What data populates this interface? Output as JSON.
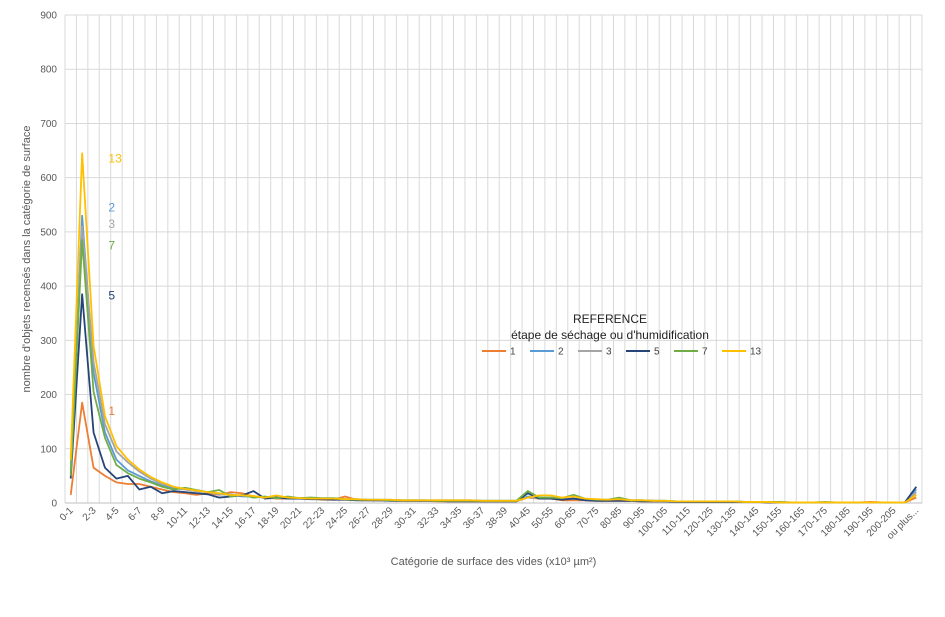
{
  "chart_data": {
    "type": "line",
    "xlabel": "Catégorie de surface des vides (x10³ µm²)",
    "ylabel": "nombre d'objets recensés dans la catégorie de surface",
    "ylim": [
      0,
      900
    ],
    "yticks": [
      0,
      100,
      200,
      300,
      400,
      500,
      600,
      700,
      800,
      900
    ],
    "grid": true,
    "legend": {
      "title_line1": "REFERENCE",
      "title_line2": "étape de séchage ou d'humidification",
      "placement": "center-right"
    },
    "categories": [
      "0-1",
      "1-2",
      "2-3",
      "3-4",
      "4-5",
      "5-6",
      "6-7",
      "7-8",
      "8-9",
      "9-10",
      "10-11",
      "11-12",
      "12-13",
      "13-14",
      "14-15",
      "15-16",
      "16-17",
      "17-18",
      "18-19",
      "19-20",
      "20-21",
      "21-22",
      "22-23",
      "23-24",
      "24-25",
      "25-26",
      "26-27",
      "27-28",
      "28-29",
      "29-30",
      "30-31",
      "31-32",
      "32-33",
      "33-34",
      "34-35",
      "35-36",
      "36-37",
      "37-38",
      "38-39",
      "39-40",
      "40-45",
      "45-50",
      "50-55",
      "55-60",
      "60-65",
      "65-70",
      "70-75",
      "75-80",
      "80-85",
      "85-90",
      "90-95",
      "95-100",
      "100-105",
      "105-110",
      "110-115",
      "115-120",
      "120-125",
      "125-130",
      "130-135",
      "135-140",
      "140-145",
      "145-150",
      "150-155",
      "155-160",
      "160-165",
      "165-170",
      "170-175",
      "175-180",
      "180-185",
      "185-190",
      "190-195",
      "195-200",
      "200-205",
      "205-210",
      "ou plus..."
    ],
    "xtick_labels": [
      "0-1",
      "2-3",
      "4-5",
      "6-7",
      "8-9",
      "10-11",
      "12-13",
      "14-15",
      "16-17",
      "18-19",
      "20-21",
      "22-23",
      "24-25",
      "26-27",
      "28-29",
      "30-31",
      "32-33",
      "34-35",
      "36-37",
      "38-39",
      "40-45",
      "50-55",
      "60-65",
      "70-75",
      "80-85",
      "90-95",
      "100-105",
      "110-115",
      "120-125",
      "130-135",
      "140-145",
      "150-155",
      "160-165",
      "170-175",
      "180-185",
      "190-195",
      "200-205",
      "ou plus..."
    ],
    "series": [
      {
        "name": "1",
        "color": "#ED7D31",
        "annotation": {
          "text": "1",
          "x_index": 4,
          "y": 170
        },
        "values": [
          15,
          185,
          65,
          50,
          38,
          35,
          35,
          30,
          25,
          20,
          18,
          15,
          18,
          15,
          20,
          18,
          12,
          10,
          8,
          8,
          8,
          8,
          6,
          6,
          12,
          6,
          5,
          5,
          5,
          4,
          4,
          4,
          3,
          3,
          3,
          3,
          3,
          3,
          3,
          3,
          10,
          8,
          8,
          5,
          5,
          5,
          4,
          4,
          4,
          4,
          3,
          3,
          3,
          3,
          3,
          2,
          2,
          2,
          2,
          2,
          2,
          1,
          1,
          1,
          1,
          1,
          1,
          1,
          1,
          1,
          2,
          1,
          1,
          1,
          10
        ]
      },
      {
        "name": "2",
        "color": "#5B9BD5",
        "annotation": {
          "text": "2",
          "x_index": 4,
          "y": 545
        },
        "values": [
          60,
          530,
          240,
          130,
          80,
          60,
          50,
          40,
          32,
          28,
          25,
          22,
          20,
          16,
          16,
          12,
          12,
          10,
          9,
          9,
          9,
          8,
          8,
          8,
          7,
          7,
          6,
          6,
          6,
          5,
          5,
          5,
          5,
          5,
          5,
          5,
          4,
          4,
          4,
          4,
          12,
          10,
          8,
          8,
          8,
          7,
          6,
          6,
          6,
          5,
          5,
          4,
          4,
          3,
          3,
          3,
          3,
          3,
          3,
          2,
          2,
          2,
          2,
          1,
          1,
          1,
          1,
          1,
          1,
          1,
          1,
          1,
          1,
          1,
          25
        ]
      },
      {
        "name": "3",
        "color": "#A5A5A5",
        "annotation": {
          "text": "3",
          "x_index": 4,
          "y": 515
        },
        "values": [
          55,
          510,
          260,
          145,
          95,
          75,
          58,
          45,
          35,
          30,
          25,
          22,
          20,
          16,
          15,
          14,
          12,
          10,
          10,
          9,
          8,
          8,
          7,
          7,
          6,
          6,
          5,
          5,
          5,
          5,
          4,
          4,
          4,
          4,
          4,
          4,
          3,
          3,
          3,
          3,
          10,
          9,
          8,
          7,
          7,
          6,
          5,
          5,
          5,
          4,
          4,
          4,
          3,
          3,
          3,
          3,
          3,
          2,
          2,
          2,
          2,
          2,
          1,
          1,
          1,
          1,
          1,
          1,
          1,
          1,
          1,
          1,
          1,
          1,
          20
        ]
      },
      {
        "name": "5",
        "color": "#264478",
        "annotation": {
          "text": "5",
          "x_index": 4,
          "y": 383
        },
        "values": [
          45,
          385,
          130,
          65,
          45,
          50,
          25,
          30,
          18,
          22,
          20,
          18,
          16,
          10,
          12,
          14,
          22,
          8,
          10,
          8,
          8,
          7,
          7,
          6,
          6,
          5,
          5,
          5,
          4,
          4,
          4,
          4,
          4,
          3,
          3,
          3,
          3,
          3,
          3,
          3,
          18,
          8,
          8,
          6,
          8,
          5,
          4,
          4,
          4,
          4,
          3,
          3,
          3,
          2,
          2,
          2,
          2,
          2,
          2,
          2,
          2,
          1,
          1,
          1,
          1,
          1,
          1,
          1,
          1,
          1,
          1,
          1,
          1,
          1,
          30
        ]
      },
      {
        "name": "7",
        "color": "#70AD47",
        "annotation": {
          "text": "7",
          "x_index": 4,
          "y": 475
        },
        "values": [
          50,
          485,
          205,
          120,
          70,
          55,
          45,
          38,
          30,
          25,
          28,
          24,
          20,
          24,
          12,
          15,
          10,
          12,
          9,
          12,
          9,
          10,
          9,
          9,
          7,
          6,
          6,
          6,
          5,
          5,
          5,
          5,
          4,
          4,
          4,
          4,
          4,
          4,
          4,
          4,
          22,
          10,
          10,
          9,
          15,
          8,
          6,
          6,
          10,
          5,
          5,
          4,
          4,
          3,
          3,
          3,
          3,
          3,
          3,
          2,
          2,
          2,
          2,
          1,
          1,
          1,
          2,
          1,
          1,
          1,
          1,
          1,
          1,
          1,
          15
        ]
      },
      {
        "name": "13",
        "color": "#FFC000",
        "annotation": {
          "text": "13",
          "x_index": 4,
          "y": 635
        },
        "values": [
          80,
          645,
          290,
          160,
          105,
          80,
          62,
          48,
          38,
          30,
          26,
          23,
          20,
          18,
          15,
          14,
          13,
          10,
          14,
          10,
          9,
          8,
          8,
          8,
          7,
          7,
          6,
          6,
          6,
          5,
          5,
          5,
          5,
          5,
          5,
          5,
          4,
          4,
          4,
          4,
          10,
          14,
          14,
          10,
          12,
          8,
          7,
          6,
          7,
          5,
          5,
          4,
          4,
          3,
          3,
          3,
          3,
          3,
          3,
          2,
          2,
          2,
          1,
          1,
          1,
          1,
          1,
          1,
          1,
          1,
          1,
          1,
          1,
          1,
          15
        ]
      }
    ]
  }
}
